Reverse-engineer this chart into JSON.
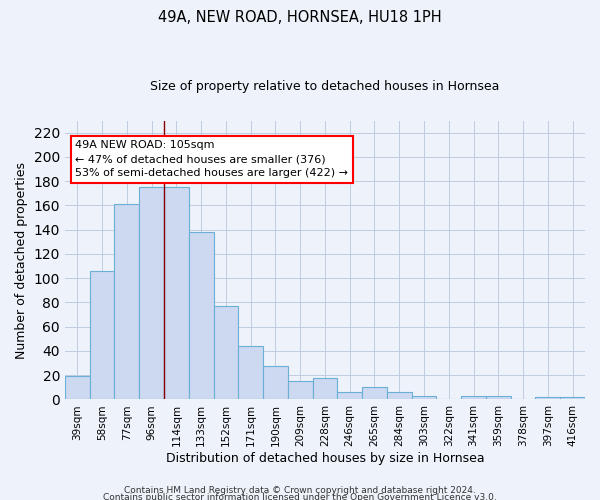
{
  "title1": "49A, NEW ROAD, HORNSEA, HU18 1PH",
  "title2": "Size of property relative to detached houses in Hornsea",
  "xlabel": "Distribution of detached houses by size in Hornsea",
  "ylabel": "Number of detached properties",
  "categories": [
    "39sqm",
    "58sqm",
    "77sqm",
    "96sqm",
    "114sqm",
    "133sqm",
    "152sqm",
    "171sqm",
    "190sqm",
    "209sqm",
    "228sqm",
    "246sqm",
    "265sqm",
    "284sqm",
    "303sqm",
    "322sqm",
    "341sqm",
    "359sqm",
    "378sqm",
    "397sqm",
    "416sqm"
  ],
  "values": [
    19,
    106,
    161,
    175,
    175,
    138,
    77,
    44,
    28,
    15,
    18,
    6,
    10,
    6,
    3,
    0,
    3,
    3,
    0,
    2,
    2
  ],
  "bar_color": "#ccd9f0",
  "bar_edge_color": "#6baed6",
  "red_line_x": 3.5,
  "annotation_text": "49A NEW ROAD: 105sqm\n← 47% of detached houses are smaller (376)\n53% of semi-detached houses are larger (422) →",
  "annotation_box_color": "white",
  "annotation_box_edge": "red",
  "ylim": [
    0,
    230
  ],
  "yticks": [
    0,
    20,
    40,
    60,
    80,
    100,
    120,
    140,
    160,
    180,
    200,
    220
  ],
  "footer1": "Contains HM Land Registry data © Crown copyright and database right 2024.",
  "footer2": "Contains public sector information licensed under the Open Government Licence v3.0.",
  "background_color": "#eef2fb",
  "grid_color": "#c0cce0"
}
